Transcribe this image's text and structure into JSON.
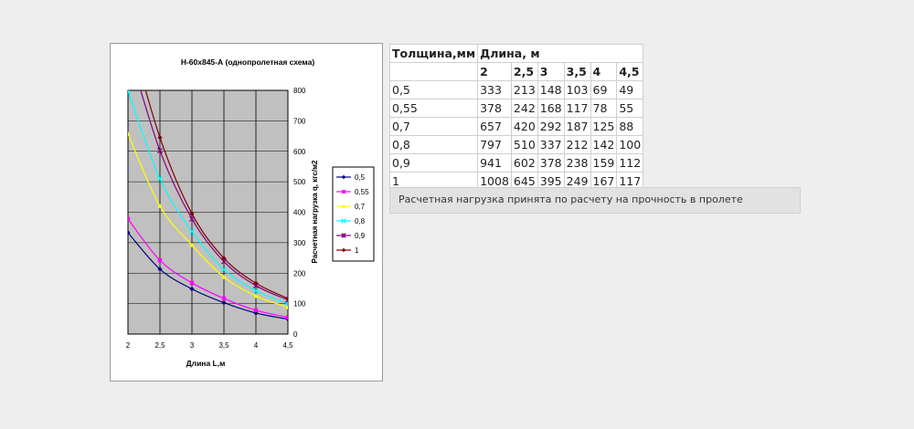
{
  "chart_data": {
    "type": "line",
    "title": "Н-60х845-А (однопролетная схема)",
    "xlabel": "Длина L,м",
    "ylabel": "Расчетная нагрузка q, кгс/м2",
    "x": [
      2,
      2.5,
      3,
      3.5,
      4,
      4.5
    ],
    "xlim": [
      2,
      4.5
    ],
    "ylim": [
      0,
      800
    ],
    "yticks": [
      0,
      100,
      200,
      300,
      400,
      500,
      600,
      700,
      800
    ],
    "xticks": [
      "2",
      "2,5",
      "3",
      "3,5",
      "4",
      "4,5"
    ],
    "y_axis_side": "right",
    "grid": true,
    "plot_background": "#c0c0c0",
    "legend_position": "right",
    "series": [
      {
        "name": "0,5",
        "values": [
          333,
          213,
          148,
          103,
          69,
          49
        ],
        "color": "#000080",
        "marker": "diamond"
      },
      {
        "name": "0,55",
        "values": [
          378,
          242,
          168,
          117,
          78,
          55
        ],
        "color": "#ff00ff",
        "marker": "square"
      },
      {
        "name": "0,7",
        "values": [
          657,
          420,
          292,
          187,
          125,
          88
        ],
        "color": "#ffff00",
        "marker": "triangle"
      },
      {
        "name": "0,8",
        "values": [
          797,
          510,
          337,
          212,
          142,
          100
        ],
        "color": "#00ffff",
        "marker": "x"
      },
      {
        "name": "0,9",
        "values": [
          941,
          602,
          378,
          238,
          159,
          112
        ],
        "color": "#800080",
        "marker": "star"
      },
      {
        "name": "1",
        "values": [
          1008,
          645,
          395,
          249,
          167,
          117
        ],
        "color": "#800000",
        "marker": "diamond"
      }
    ]
  },
  "table": {
    "header_thickness": "Толщина,мм",
    "header_length": "Длина, м",
    "lengths": [
      "2",
      "2,5",
      "3",
      "3,5",
      "4",
      "4,5"
    ],
    "rows": [
      {
        "thickness": "0,5",
        "values": [
          "333",
          "213",
          "148",
          "103",
          "69",
          "49"
        ]
      },
      {
        "thickness": "0,55",
        "values": [
          "378",
          "242",
          "168",
          "117",
          "78",
          "55"
        ]
      },
      {
        "thickness": "0,7",
        "values": [
          "657",
          "420",
          "292",
          "187",
          "125",
          "88"
        ]
      },
      {
        "thickness": "0,8",
        "values": [
          "797",
          "510",
          "337",
          "212",
          "142",
          "100"
        ]
      },
      {
        "thickness": "0,9",
        "values": [
          "941",
          "602",
          "378",
          "238",
          "159",
          "112"
        ]
      },
      {
        "thickness": "1",
        "values": [
          "1008",
          "645",
          "395",
          "249",
          "167",
          "117"
        ]
      }
    ]
  },
  "note": "Расчетная нагрузка принята по расчету на прочность в пролете"
}
